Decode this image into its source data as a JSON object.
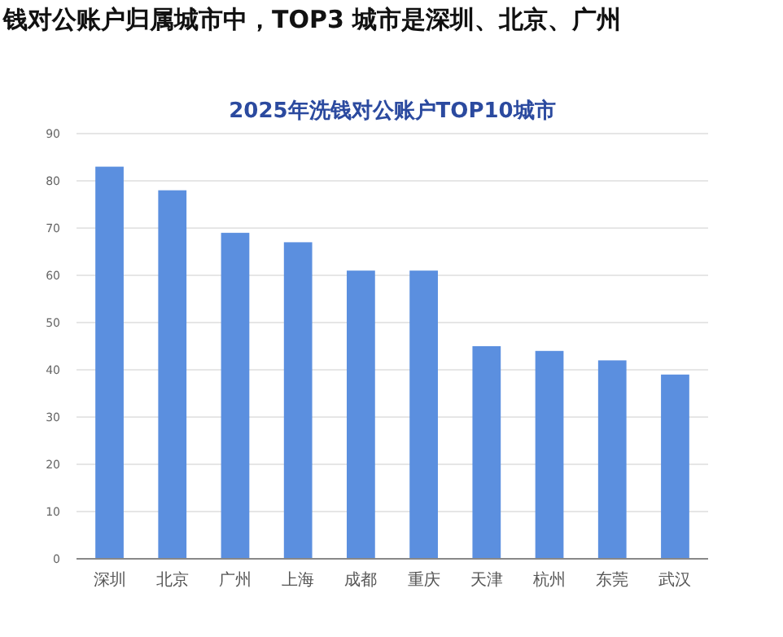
{
  "chart_data": {
    "type": "bar",
    "title": "2025年洗钱对公账户TOP10城市",
    "subtitle": "钱对公账户归属城市中，TOP3 城市是深圳、北京、广州",
    "categories": [
      "深圳",
      "北京",
      "广州",
      "上海",
      "成都",
      "重庆",
      "天津",
      "杭州",
      "东莞",
      "武汉"
    ],
    "values": [
      83,
      78,
      69,
      67,
      61,
      61,
      45,
      44,
      42,
      39
    ],
    "color": "#5b8fdf",
    "ylim": [
      0,
      90
    ],
    "yticks": [
      0,
      10,
      20,
      30,
      40,
      50,
      60,
      70,
      80,
      90
    ],
    "grid": "y"
  }
}
